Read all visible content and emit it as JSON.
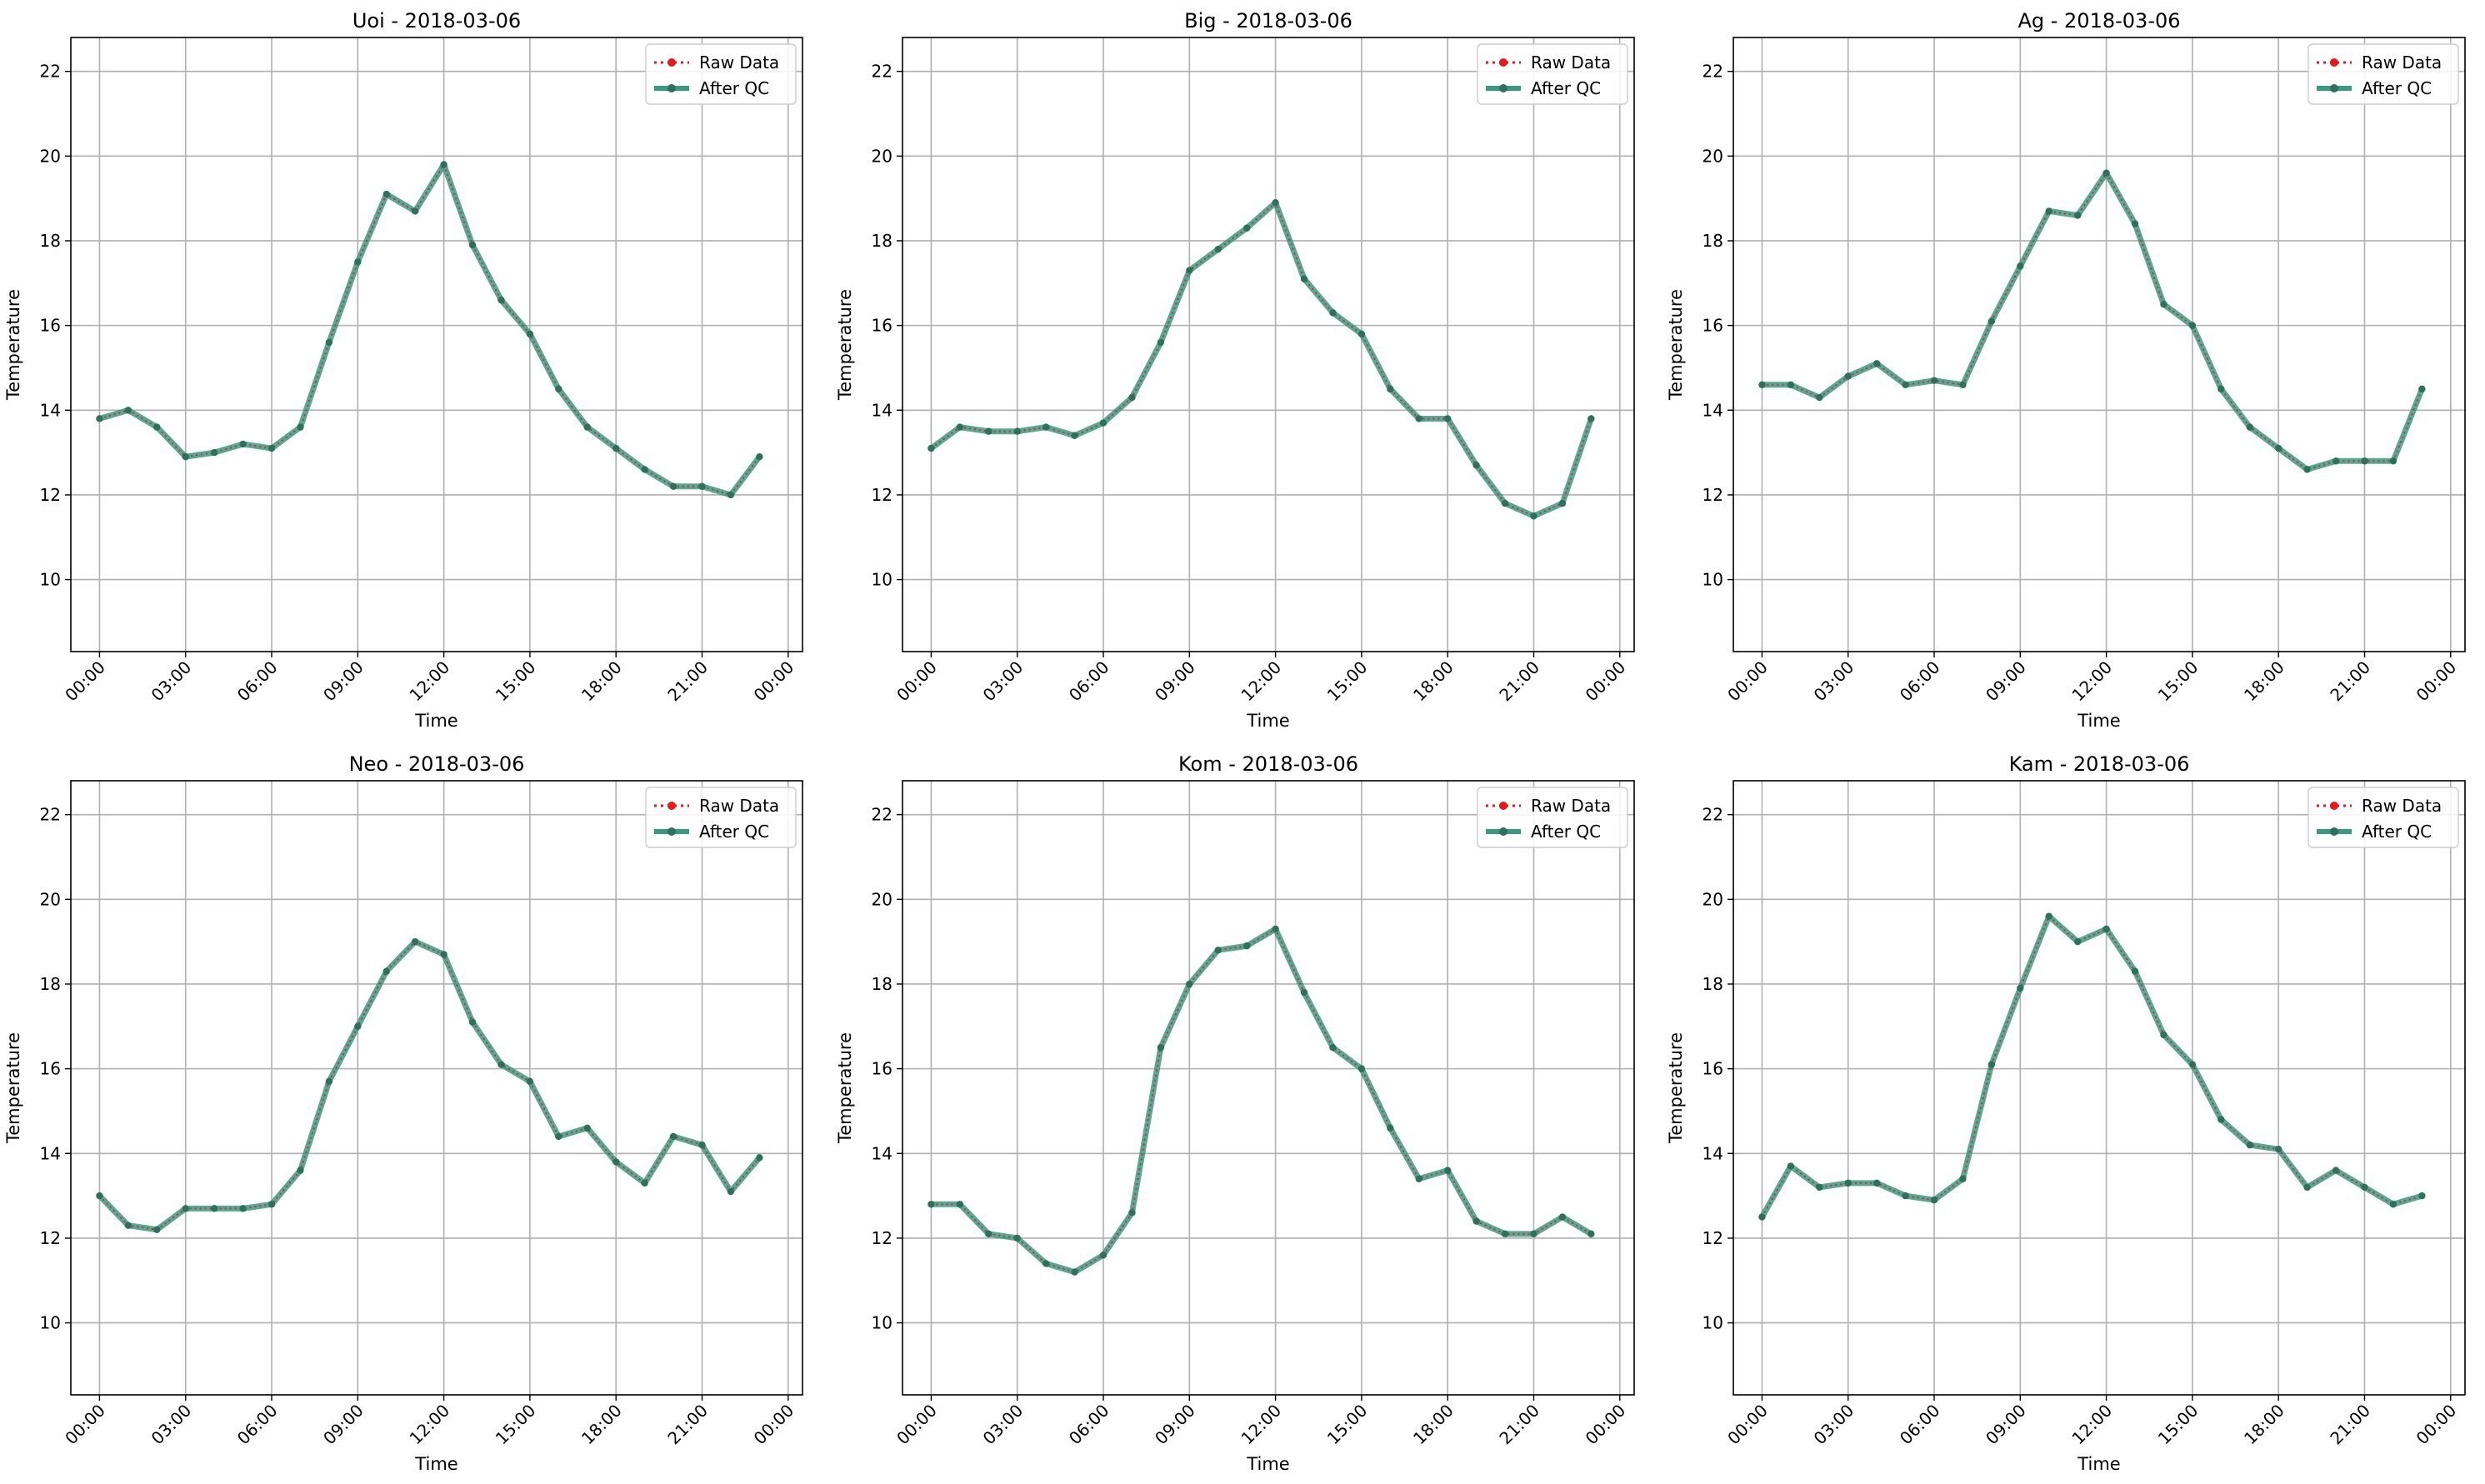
{
  "figure": {
    "colors": {
      "raw": "#e31a1c",
      "qc": "#3a9a80",
      "grid": "#b0b0b0",
      "axes": "#000000"
    },
    "legend": {
      "raw_label": "Raw Data",
      "qc_label": "After QC",
      "placement": "upper right"
    }
  },
  "chart_data": [
    {
      "type": "line",
      "title": "Uoi - 2018-03-06",
      "xlabel": "Time",
      "ylabel": "Temperature",
      "xticks": [
        "00:00",
        "03:00",
        "06:00",
        "09:00",
        "12:00",
        "15:00",
        "18:00",
        "21:00",
        "00:00"
      ],
      "yticks": [
        "10",
        "12",
        "14",
        "16",
        "18",
        "20",
        "22"
      ],
      "ylim": [
        8.3,
        22.8
      ],
      "grid": true,
      "x_hours": [
        0,
        1,
        2,
        3,
        4,
        5,
        6,
        7,
        8,
        9,
        10,
        11,
        12,
        13,
        14,
        15,
        16,
        17,
        18,
        19,
        20,
        21,
        22,
        23
      ],
      "series": [
        {
          "name": "Raw Data",
          "values": [
            13.8,
            14.0,
            13.6,
            12.9,
            13.0,
            13.2,
            13.1,
            13.6,
            15.6,
            17.5,
            19.1,
            18.7,
            19.8,
            17.9,
            16.6,
            15.8,
            14.5,
            13.6,
            13.1,
            12.6,
            12.2,
            12.2,
            12.0,
            12.9
          ]
        },
        {
          "name": "After QC",
          "values": [
            13.8,
            14.0,
            13.6,
            12.9,
            13.0,
            13.2,
            13.1,
            13.6,
            15.6,
            17.5,
            19.1,
            18.7,
            19.8,
            17.9,
            16.6,
            15.8,
            14.5,
            13.6,
            13.1,
            12.6,
            12.2,
            12.2,
            12.0,
            12.9
          ]
        }
      ]
    },
    {
      "type": "line",
      "title": "Big - 2018-03-06",
      "xlabel": "Time",
      "ylabel": "Temperature",
      "xticks": [
        "00:00",
        "03:00",
        "06:00",
        "09:00",
        "12:00",
        "15:00",
        "18:00",
        "21:00",
        "00:00"
      ],
      "yticks": [
        "10",
        "12",
        "14",
        "16",
        "18",
        "20",
        "22"
      ],
      "ylim": [
        8.3,
        22.8
      ],
      "grid": true,
      "x_hours": [
        0,
        1,
        2,
        3,
        4,
        5,
        6,
        7,
        8,
        9,
        10,
        11,
        12,
        13,
        14,
        15,
        16,
        17,
        18,
        19,
        20,
        21,
        22,
        23
      ],
      "series": [
        {
          "name": "Raw Data",
          "values": [
            13.1,
            13.6,
            13.5,
            13.5,
            13.6,
            13.4,
            13.7,
            14.3,
            15.6,
            17.3,
            17.8,
            18.3,
            18.9,
            17.1,
            16.3,
            15.8,
            14.5,
            13.8,
            13.8,
            12.7,
            11.8,
            11.5,
            11.8,
            13.8
          ]
        },
        {
          "name": "After QC",
          "values": [
            13.1,
            13.6,
            13.5,
            13.5,
            13.6,
            13.4,
            13.7,
            14.3,
            15.6,
            17.3,
            17.8,
            18.3,
            18.9,
            17.1,
            16.3,
            15.8,
            14.5,
            13.8,
            13.8,
            12.7,
            11.8,
            11.5,
            11.8,
            13.8
          ]
        }
      ]
    },
    {
      "type": "line",
      "title": "Ag - 2018-03-06",
      "xlabel": "Time",
      "ylabel": "Temperature",
      "xticks": [
        "00:00",
        "03:00",
        "06:00",
        "09:00",
        "12:00",
        "15:00",
        "18:00",
        "21:00",
        "00:00"
      ],
      "yticks": [
        "10",
        "12",
        "14",
        "16",
        "18",
        "20",
        "22"
      ],
      "ylim": [
        8.3,
        22.8
      ],
      "grid": true,
      "x_hours": [
        0,
        1,
        2,
        3,
        4,
        5,
        6,
        7,
        8,
        9,
        10,
        11,
        12,
        13,
        14,
        15,
        16,
        17,
        18,
        19,
        20,
        21,
        22,
        23
      ],
      "series": [
        {
          "name": "Raw Data",
          "values": [
            14.6,
            14.6,
            14.3,
            14.8,
            15.1,
            14.6,
            14.7,
            14.6,
            16.1,
            17.4,
            18.7,
            18.6,
            19.6,
            18.4,
            16.5,
            16.0,
            14.5,
            13.6,
            13.1,
            12.6,
            12.8,
            12.8,
            12.8,
            14.5
          ]
        },
        {
          "name": "After QC",
          "values": [
            14.6,
            14.6,
            14.3,
            14.8,
            15.1,
            14.6,
            14.7,
            14.6,
            16.1,
            17.4,
            18.7,
            18.6,
            19.6,
            18.4,
            16.5,
            16.0,
            14.5,
            13.6,
            13.1,
            12.6,
            12.8,
            12.8,
            12.8,
            14.5
          ]
        }
      ]
    },
    {
      "type": "line",
      "title": "Neo - 2018-03-06",
      "xlabel": "Time",
      "ylabel": "Temperature",
      "xticks": [
        "00:00",
        "03:00",
        "06:00",
        "09:00",
        "12:00",
        "15:00",
        "18:00",
        "21:00",
        "00:00"
      ],
      "yticks": [
        "10",
        "12",
        "14",
        "16",
        "18",
        "20",
        "22"
      ],
      "ylim": [
        8.3,
        22.8
      ],
      "grid": true,
      "x_hours": [
        0,
        1,
        2,
        3,
        4,
        5,
        6,
        7,
        8,
        9,
        10,
        11,
        12,
        13,
        14,
        15,
        16,
        17,
        18,
        19,
        20,
        21,
        22,
        23
      ],
      "series": [
        {
          "name": "Raw Data",
          "values": [
            13.0,
            12.3,
            12.2,
            12.7,
            12.7,
            12.7,
            12.8,
            13.6,
            15.7,
            17.0,
            18.3,
            19.0,
            18.7,
            17.1,
            16.1,
            15.7,
            14.4,
            14.6,
            13.8,
            13.3,
            14.4,
            14.2,
            13.1,
            13.9
          ]
        },
        {
          "name": "After QC",
          "values": [
            13.0,
            12.3,
            12.2,
            12.7,
            12.7,
            12.7,
            12.8,
            13.6,
            15.7,
            17.0,
            18.3,
            19.0,
            18.7,
            17.1,
            16.1,
            15.7,
            14.4,
            14.6,
            13.8,
            13.3,
            14.4,
            14.2,
            13.1,
            13.9
          ]
        }
      ]
    },
    {
      "type": "line",
      "title": "Kom - 2018-03-06",
      "xlabel": "Time",
      "ylabel": "Temperature",
      "xticks": [
        "00:00",
        "03:00",
        "06:00",
        "09:00",
        "12:00",
        "15:00",
        "18:00",
        "21:00",
        "00:00"
      ],
      "yticks": [
        "10",
        "12",
        "14",
        "16",
        "18",
        "20",
        "22"
      ],
      "ylim": [
        8.3,
        22.8
      ],
      "grid": true,
      "x_hours": [
        0,
        1,
        2,
        3,
        4,
        5,
        6,
        7,
        8,
        9,
        10,
        11,
        12,
        13,
        14,
        15,
        16,
        17,
        18,
        19,
        20,
        21,
        22,
        23
      ],
      "series": [
        {
          "name": "Raw Data",
          "values": [
            12.8,
            12.8,
            12.1,
            12.0,
            11.4,
            11.2,
            11.6,
            12.6,
            16.5,
            18.0,
            18.8,
            18.9,
            19.3,
            17.8,
            16.5,
            16.0,
            14.6,
            13.4,
            13.6,
            12.4,
            12.1,
            12.1,
            12.5,
            12.1
          ]
        },
        {
          "name": "After QC",
          "values": [
            12.8,
            12.8,
            12.1,
            12.0,
            11.4,
            11.2,
            11.6,
            12.6,
            16.5,
            18.0,
            18.8,
            18.9,
            19.3,
            17.8,
            16.5,
            16.0,
            14.6,
            13.4,
            13.6,
            12.4,
            12.1,
            12.1,
            12.5,
            12.1
          ]
        }
      ]
    },
    {
      "type": "line",
      "title": "Kam - 2018-03-06",
      "xlabel": "Time",
      "ylabel": "Temperature",
      "xticks": [
        "00:00",
        "03:00",
        "06:00",
        "09:00",
        "12:00",
        "15:00",
        "18:00",
        "21:00",
        "00:00"
      ],
      "yticks": [
        "10",
        "12",
        "14",
        "16",
        "18",
        "20",
        "22"
      ],
      "ylim": [
        8.3,
        22.8
      ],
      "grid": true,
      "x_hours": [
        0,
        1,
        2,
        3,
        4,
        5,
        6,
        7,
        8,
        9,
        10,
        11,
        12,
        13,
        14,
        15,
        16,
        17,
        18,
        19,
        20,
        21,
        22,
        23
      ],
      "series": [
        {
          "name": "Raw Data",
          "values": [
            12.5,
            13.7,
            13.2,
            13.3,
            13.3,
            13.0,
            12.9,
            13.4,
            16.1,
            17.9,
            19.6,
            19.0,
            19.3,
            18.3,
            16.8,
            16.1,
            14.8,
            14.2,
            14.1,
            13.2,
            13.6,
            13.2,
            12.8,
            13.0
          ]
        },
        {
          "name": "After QC",
          "values": [
            12.5,
            13.7,
            13.2,
            13.3,
            13.3,
            13.0,
            12.9,
            13.4,
            16.1,
            17.9,
            19.6,
            19.0,
            19.3,
            18.3,
            16.8,
            16.1,
            14.8,
            14.2,
            14.1,
            13.2,
            13.6,
            13.2,
            12.8,
            13.0
          ]
        }
      ]
    }
  ]
}
